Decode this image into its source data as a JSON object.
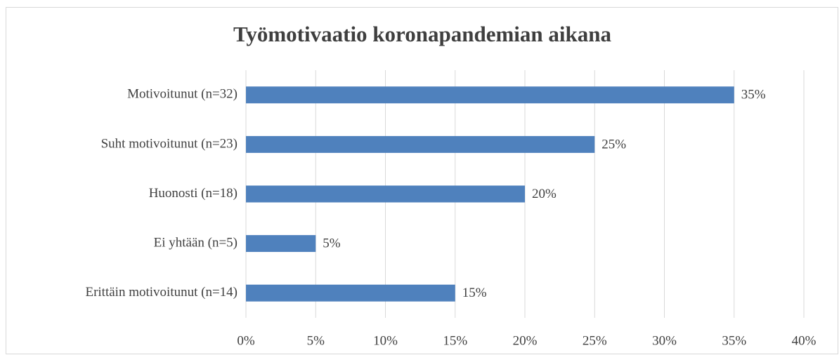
{
  "chart_data": {
    "type": "bar",
    "orientation": "horizontal",
    "title": "Työmotivaatio koronapandemian aikana",
    "categories": [
      "Motivoitunut (n=32)",
      "Suht motivoitunut (n=23)",
      "Huonosti (n=18)",
      "Ei yhtään (n=5)",
      "Erittäin motivoitunut (n=14)"
    ],
    "values": [
      35,
      25,
      20,
      5,
      15
    ],
    "value_labels": [
      "35%",
      "25%",
      "20%",
      "5%",
      "15%"
    ],
    "color": "#4f81bd",
    "xlim": [
      0,
      40
    ],
    "xticks": [
      {
        "value": 0,
        "label": "0%"
      },
      {
        "value": 5,
        "label": "5%"
      },
      {
        "value": 10,
        "label": "10%"
      },
      {
        "value": 15,
        "label": "15%"
      },
      {
        "value": 20,
        "label": "20%"
      },
      {
        "value": 25,
        "label": "25%"
      },
      {
        "value": 30,
        "label": "30%"
      },
      {
        "value": 35,
        "label": "35%"
      },
      {
        "value": 40,
        "label": "40%"
      }
    ],
    "grid": true
  }
}
